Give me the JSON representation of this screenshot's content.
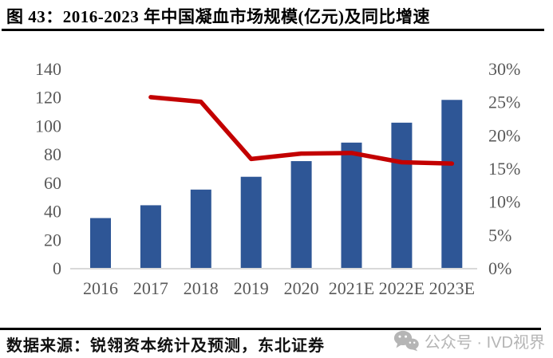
{
  "header": {
    "title": "图 43：2016-2023 年中国凝血市场规模(亿元)及同比增速"
  },
  "footer": {
    "source": "数据来源：锐翎资本统计及预测，东北证券",
    "watermark": {
      "icon": "wechat-icon",
      "label": "公众号 · IVD视界"
    }
  },
  "colors": {
    "bar": "#2E5696",
    "line": "#C30000",
    "tick_text": "#595959",
    "axis_line": "#D9D9D9",
    "divider": "#000000",
    "watermark_text": "#B5B5B5"
  },
  "chart_data": {
    "type": "combo",
    "title": "2016-2023 年中国凝血市场规模(亿元)及同比增速",
    "categories": [
      "2016",
      "2017",
      "2018",
      "2019",
      "2020",
      "2021E",
      "2022E",
      "2023E"
    ],
    "series": [
      {
        "name": "中国凝血市场规模(亿元)",
        "type": "bar",
        "axis": "left",
        "color": "#2E5696",
        "values": [
          35,
          44,
          55,
          64,
          75,
          88,
          102,
          118
        ]
      },
      {
        "name": "同比增速",
        "type": "line",
        "axis": "right",
        "color": "#C30000",
        "values": [
          null,
          25.7,
          25.0,
          16.4,
          17.2,
          17.3,
          15.9,
          15.7
        ]
      }
    ],
    "y_left": {
      "ticks": [
        0,
        20,
        40,
        60,
        80,
        100,
        120,
        140
      ],
      "range": [
        0,
        140
      ]
    },
    "y_right": {
      "ticks": [
        "0%",
        "5%",
        "10%",
        "15%",
        "20%",
        "25%",
        "30%"
      ],
      "range_pct": [
        0,
        30
      ]
    },
    "grid": false,
    "legend": "none"
  }
}
